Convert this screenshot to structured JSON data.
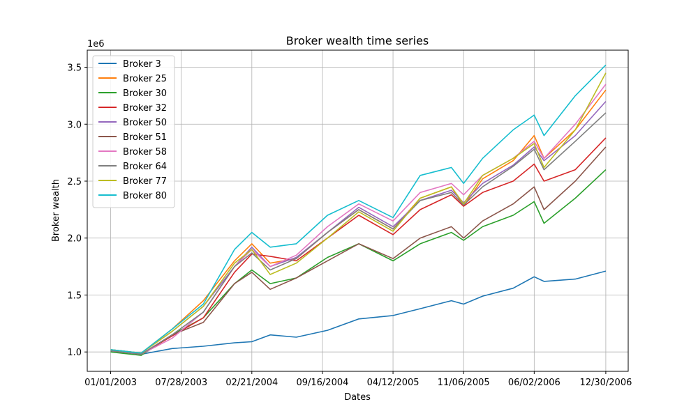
{
  "chart_data": {
    "type": "line",
    "title": "Broker wealth time series",
    "xlabel": "Dates",
    "ylabel": "Broker wealth",
    "y_offset_label": "1e6",
    "y_scale_factor": 1000000,
    "xlim": [
      "2002-10-24",
      "2007-03-06"
    ],
    "ylim": [
      830000,
      3650000
    ],
    "grid": true,
    "legend_position": "upper left",
    "x_ticks": [
      {
        "date": "2003-01-01",
        "label": "01/01/2003"
      },
      {
        "date": "2003-07-28",
        "label": "07/28/2003"
      },
      {
        "date": "2004-02-21",
        "label": "02/21/2004"
      },
      {
        "date": "2004-09-16",
        "label": "09/16/2004"
      },
      {
        "date": "2005-04-12",
        "label": "04/12/2005"
      },
      {
        "date": "2005-11-06",
        "label": "11/06/2005"
      },
      {
        "date": "2006-06-02",
        "label": "06/02/2006"
      },
      {
        "date": "2006-12-30",
        "label": "12/30/2006"
      }
    ],
    "y_ticks": [
      {
        "value": 1000000,
        "label": "1.0"
      },
      {
        "value": 1500000,
        "label": "1.5"
      },
      {
        "value": 2000000,
        "label": "2.0"
      },
      {
        "value": 2500000,
        "label": "2.5"
      },
      {
        "value": 3000000,
        "label": "3.0"
      },
      {
        "value": 3500000,
        "label": "3.5"
      }
    ],
    "x_dates": [
      "2003-01-01",
      "2003-04-01",
      "2003-07-01",
      "2003-10-01",
      "2004-01-01",
      "2004-02-21",
      "2004-04-15",
      "2004-07-01",
      "2004-10-01",
      "2005-01-01",
      "2005-04-12",
      "2005-07-01",
      "2005-10-01",
      "2005-11-06",
      "2006-01-01",
      "2006-04-01",
      "2006-06-02",
      "2006-07-01",
      "2006-10-01",
      "2006-12-30"
    ],
    "series": [
      {
        "name": "Broker 3",
        "color": "#1f77b4",
        "values": [
          1000000,
          980000,
          1030000,
          1050000,
          1080000,
          1090000,
          1150000,
          1130000,
          1190000,
          1290000,
          1320000,
          1380000,
          1450000,
          1420000,
          1490000,
          1560000,
          1660000,
          1620000,
          1640000,
          1710000
        ]
      },
      {
        "name": "Broker 25",
        "color": "#ff7f0e",
        "values": [
          1020000,
          990000,
          1200000,
          1450000,
          1800000,
          1950000,
          1780000,
          1820000,
          2050000,
          2250000,
          2080000,
          2350000,
          2450000,
          2280000,
          2520000,
          2680000,
          2900000,
          2700000,
          2950000,
          3300000
        ]
      },
      {
        "name": "Broker 30",
        "color": "#2ca02c",
        "values": [
          1000000,
          970000,
          1150000,
          1300000,
          1600000,
          1720000,
          1600000,
          1650000,
          1830000,
          1950000,
          1800000,
          1950000,
          2050000,
          1980000,
          2100000,
          2200000,
          2320000,
          2130000,
          2350000,
          2600000
        ]
      },
      {
        "name": "Broker 32",
        "color": "#d62728",
        "values": [
          1010000,
          980000,
          1140000,
          1300000,
          1700000,
          1860000,
          1840000,
          1800000,
          2000000,
          2200000,
          2030000,
          2250000,
          2380000,
          2280000,
          2400000,
          2500000,
          2650000,
          2500000,
          2600000,
          2880000
        ]
      },
      {
        "name": "Broker 50",
        "color": "#9467bd",
        "values": [
          1020000,
          990000,
          1180000,
          1400000,
          1750000,
          1920000,
          1750000,
          1830000,
          2050000,
          2270000,
          2100000,
          2330000,
          2420000,
          2310000,
          2480000,
          2640000,
          2800000,
          2680000,
          2900000,
          3200000
        ]
      },
      {
        "name": "Broker 51",
        "color": "#8c564b",
        "values": [
          1010000,
          980000,
          1150000,
          1260000,
          1600000,
          1700000,
          1550000,
          1650000,
          1800000,
          1950000,
          1820000,
          2000000,
          2100000,
          2000000,
          2150000,
          2300000,
          2450000,
          2250000,
          2500000,
          2800000
        ]
      },
      {
        "name": "Broker 58",
        "color": "#e377c2",
        "values": [
          1010000,
          980000,
          1120000,
          1350000,
          1750000,
          1900000,
          1750000,
          1850000,
          2100000,
          2300000,
          2150000,
          2400000,
          2480000,
          2380000,
          2550000,
          2700000,
          2850000,
          2700000,
          3000000,
          3350000
        ]
      },
      {
        "name": "Broker 64",
        "color": "#7f7f7f",
        "values": [
          1010000,
          980000,
          1150000,
          1350000,
          1750000,
          1870000,
          1720000,
          1820000,
          2050000,
          2250000,
          2080000,
          2330000,
          2400000,
          2290000,
          2450000,
          2630000,
          2780000,
          2600000,
          2850000,
          3100000
        ]
      },
      {
        "name": "Broker 77",
        "color": "#bcbd22",
        "values": [
          1020000,
          990000,
          1180000,
          1400000,
          1780000,
          1900000,
          1680000,
          1780000,
          2000000,
          2230000,
          2060000,
          2350000,
          2450000,
          2300000,
          2550000,
          2700000,
          2830000,
          2620000,
          2950000,
          3450000
        ]
      },
      {
        "name": "Broker 80",
        "color": "#17becf",
        "values": [
          1020000,
          990000,
          1200000,
          1420000,
          1900000,
          2050000,
          1920000,
          1950000,
          2200000,
          2330000,
          2180000,
          2550000,
          2620000,
          2480000,
          2700000,
          2950000,
          3080000,
          2900000,
          3250000,
          3520000
        ]
      }
    ]
  }
}
